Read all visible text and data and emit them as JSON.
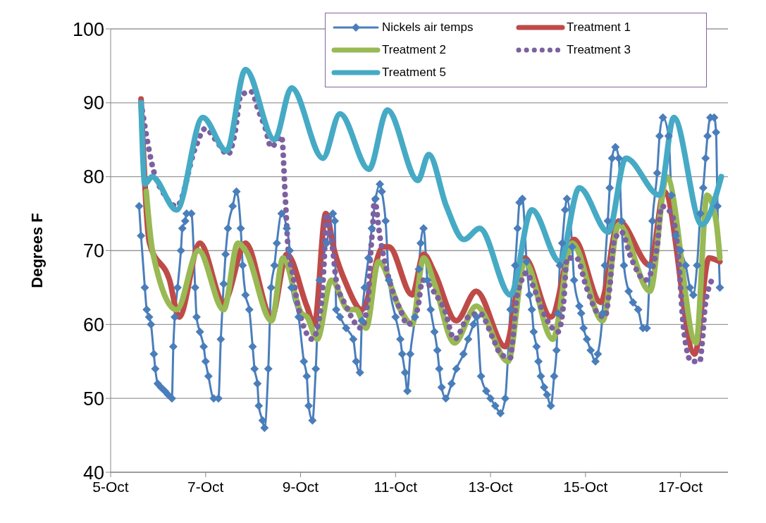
{
  "chart_data": {
    "type": "line",
    "ylabel": "Degrees F",
    "xlim": [
      "--10-05",
      "--10-18"
    ],
    "xticks": [
      {
        "value": "--10-05",
        "label": "5-Oct"
      },
      {
        "value": "--10-07",
        "label": "7-Oct"
      },
      {
        "value": "--10-09",
        "label": "9-Oct"
      },
      {
        "value": "--10-11",
        "label": "11-Oct"
      },
      {
        "value": "--10-13",
        "label": "13-Oct"
      },
      {
        "value": "--10-15",
        "label": "15-Oct"
      },
      {
        "value": "--10-17",
        "label": "17-Oct"
      }
    ],
    "ylim": [
      40,
      100
    ],
    "yticks": [
      40,
      50,
      60,
      70,
      80,
      90,
      100
    ],
    "grid": "y",
    "legend": "top right",
    "series": [
      {
        "name": "Nickels air temps",
        "color": "#4a7ebb",
        "marker": "diamond",
        "x": [
          "--10-05T14:24",
          "--10-05T15:22",
          "--10-05T17:17",
          "--10-05T18:14",
          "--10-05T19:26",
          "--10-05T20:24",
          "--10-05T21:50",
          "--10-05T22:34",
          "--10-05T23:46",
          "--10-06T01:26",
          "--10-06T03:22",
          "--10-06T05:02",
          "--10-06T06:58",
          "--10-06T07:41",
          "--10-06T08:24",
          "--10-06T09:50",
          "--10-06T11:31",
          "--10-06T12:14",
          "--10-06T13:41",
          "--10-06T14:24",
          "--10-06T16:48",
          "--10-06T18:43",
          "--10-06T19:26",
          "--10-06T21:07",
          "--10-06T23:02",
          "--10-07T00:00",
          "--10-07T01:26",
          "--10-07T04:05",
          "--10-07T06:29",
          "--10-07T07:41",
          "--10-07T09:07",
          "--10-07T10:05",
          "--10-07T11:17",
          "--10-07T13:41",
          "--10-07T15:36",
          "--10-07T17:46",
          "--10-07T18:43",
          "--10-07T20:10",
          "--10-07T22:05",
          "--10-07T23:46",
          "--10-08T00:43",
          "--10-08T02:10",
          "--10-08T02:53",
          "--10-08T04:48",
          "--10-08T05:46",
          "--10-08T07:41",
          "--10-08T09:07",
          "--10-08T10:48",
          "--10-08T12:00",
          "--10-08T14:24",
          "--10-08T17:02",
          "--10-08T18:29",
          "--10-08T19:26",
          "--10-08T23:02",
          "--10-09T01:41",
          "--10-09T03:07",
          "--10-09T04:05",
          "--10-09T06:00",
          "--10-09T07:41",
          "--10-09T09:36",
          "--10-09T13:12",
          "--10-09T16:19",
          "--10-09T17:17",
          "--10-09T18:00",
          "--10-09T19:55",
          "--10-09T23:02",
          "--10-10T02:38",
          "--10-10T04:05",
          "--10-10T06:00",
          "--10-10T06:58",
          "--10-10T08:24",
          "--10-10T10:19",
          "--10-10T12:00",
          "--10-10T13:55",
          "--10-10T16:05",
          "--10-10T17:02",
          "--10-10T18:58",
          "--10-10T20:38",
          "--10-11T00:00",
          "--10-11T02:24",
          "--10-11T03:22",
          "--10-11T04:48",
          "--10-11T06:00",
          "--10-11T07:26",
          "--10-11T09:50",
          "--10-11T11:46",
          "--10-11T12:43",
          "--10-11T14:10",
          "--10-11T16:05",
          "--10-11T17:46",
          "--10-11T19:41",
          "--10-11T21:07",
          "--10-11T22:05",
          "--10-11T23:17",
          "--10-12T01:26",
          "--10-12T04:19",
          "--10-12T06:43",
          "--10-12T10:19",
          "--10-12T12:43",
          "--10-12T15:22",
          "--10-12T17:02",
          "--10-12T19:12",
          "--10-12T21:50",
          "--10-13T00:00",
          "--10-13T02:24",
          "--10-13T05:02",
          "--10-13T07:26",
          "--10-13T10:05",
          "--10-13T12:29",
          "--10-13T13:41",
          "--10-13T14:38",
          "--10-13T16:05",
          "--10-13T18:14",
          "--10-13T19:41",
          "--10-13T20:53",
          "--10-13T21:50",
          "--10-13T23:17",
          "--10-14T00:14",
          "--10-14T01:26",
          "--10-14T03:07",
          "--10-14T04:34",
          "--10-14T06:29",
          "--10-14T08:10",
          "--10-14T09:22",
          "--10-14T10:05",
          "--10-14T11:02",
          "--10-14T12:14",
          "--10-14T13:41",
          "--10-14T14:38",
          "--10-14T17:17",
          "--10-14T18:14",
          "--10-14T20:53",
          "--10-14T21:50",
          "--10-14T23:02",
          "--10-15T00:43",
          "--10-15T02:38",
          "--10-15T05:02",
          "--10-15T06:14",
          "--10-15T08:38",
          "--10-15T09:50",
          "--10-15T11:17",
          "--10-15T12:14",
          "--10-15T13:26",
          "--10-15T15:07",
          "--10-15T16:48",
          "--10-15T18:14",
          "--10-15T19:26",
          "--10-15T21:50",
          "--10-16T00:00",
          "--10-16T02:38",
          "--10-16T05:02",
          "--10-16T06:58",
          "--10-16T08:38",
          "--10-16T09:50",
          "--10-16T12:14",
          "--10-16T13:26",
          "--10-16T15:07",
          "--10-16T18:00",
          "--10-16T19:26",
          "--10-16T21:36",
          "--10-17T00:00",
          "--10-17T02:38",
          "--10-17T04:48",
          "--10-17T06:29",
          "--10-17T08:24",
          "--10-17T10:05",
          "--10-17T11:31",
          "--10-17T12:43",
          "--10-17T13:41",
          "--10-17T15:07",
          "--10-17T17:02",
          "--10-17T18:00",
          "--10-17T18:43",
          "--10-17T19:55"
        ],
        "values": [
          76,
          72,
          65,
          62,
          61,
          60,
          56,
          54,
          52,
          51.5,
          51,
          50.5,
          50,
          57,
          61,
          65,
          70,
          73,
          74,
          75,
          75,
          65,
          61,
          59,
          57,
          55,
          53,
          50,
          50,
          58,
          65.5,
          69.5,
          73,
          76,
          78,
          73,
          68,
          64,
          62,
          57,
          54,
          52,
          49,
          47,
          46,
          54,
          65,
          68,
          71,
          75,
          73,
          70,
          65,
          61,
          55,
          53,
          49,
          47,
          54,
          66,
          71,
          75,
          74,
          62,
          61,
          59.5,
          58,
          55,
          53.5,
          60.5,
          65,
          69,
          73,
          77,
          79,
          78,
          74,
          66,
          61,
          58,
          56,
          53.5,
          51,
          56,
          61,
          67.5,
          71,
          73,
          66,
          62,
          59,
          56.5,
          54,
          51.5,
          50,
          52,
          54,
          56,
          58,
          60,
          61,
          53,
          51,
          50,
          49,
          48,
          50,
          62,
          68,
          73,
          76.5,
          77,
          68.5,
          64,
          62,
          59,
          57,
          55,
          53,
          51.5,
          50.5,
          49,
          53,
          56.5,
          61.5,
          68,
          71,
          75.5,
          77,
          70.5,
          66,
          62.5,
          61.5,
          59.5,
          58,
          56.5,
          55,
          56,
          61.5,
          68,
          74,
          78.5,
          82.5,
          84,
          82.5,
          74,
          68,
          64.5,
          63,
          62,
          59.5,
          59.5,
          68,
          74,
          80.5,
          85.5,
          88,
          85.5,
          77.5,
          72,
          70,
          68,
          65,
          64,
          68,
          75,
          78.5,
          82.5,
          85.5,
          88,
          88,
          86,
          76,
          65
        ]
      },
      {
        "name": "Treatment 1",
        "color": "#be4b48",
        "marker": "none",
        "x": [
          "--10-05T15:22",
          "--10-05T19:41",
          "--10-06T05:46",
          "--10-06T10:34",
          "--10-06T21:07",
          "--10-07T09:07",
          "--10-07T20:10",
          "--10-08T09:22",
          "--10-08T17:02",
          "--10-09T03:07",
          "--10-09T06:58",
          "--10-09T12:43",
          "--10-09T17:02",
          "--10-09T23:02",
          "--10-10T06:58",
          "--10-10T17:46",
          "--10-10T20:38",
          "--10-11T08:24",
          "--10-11T14:10",
          "--10-11T19:41",
          "--10-12T06:43",
          "--10-12T16:48",
          "--10-13T07:26",
          "--10-13T17:17",
          "--10-14T06:29",
          "--10-14T18:14",
          "--10-15T07:41",
          "--10-15T16:48",
          "--10-16T08:38",
          "--10-16T15:50",
          "--10-17T07:12",
          "--10-17T14:24",
          "--10-17T19:55"
        ],
        "values": [
          90.5,
          71,
          66,
          61,
          71,
          63,
          71,
          61,
          69.5,
          62.5,
          60,
          75,
          70,
          65.5,
          62,
          70.5,
          70.5,
          64,
          69.5,
          67,
          60.5,
          64.5,
          57,
          69,
          61,
          71.5,
          63,
          74,
          68,
          78,
          56,
          69,
          68.5
        ]
      },
      {
        "name": "Treatment 2",
        "color": "#98b954",
        "marker": "none",
        "x": [
          "--10-05T18:00",
          "--10-05T21:07",
          "--10-06T09:22",
          "--10-06T20:24",
          "--10-07T09:07",
          "--10-07T16:19",
          "--10-07T20:10",
          "--10-08T09:22",
          "--10-08T15:07",
          "--10-09T00:29",
          "--10-09T03:22",
          "--10-09T08:24",
          "--10-09T15:36",
          "--10-10T00:14",
          "--10-10T04:05",
          "--10-10T09:07",
          "--10-10T15:22",
          "--10-11T02:24",
          "--10-11T08:24",
          "--10-11T14:10",
          "--10-11T19:41",
          "--10-12T05:46",
          "--10-12T16:48",
          "--10-13T08:53",
          "--10-13T17:17",
          "--10-14T07:26",
          "--10-14T17:17",
          "--10-15T08:38",
          "--10-15T16:48",
          "--10-16T08:38",
          "--10-16T17:02",
          "--10-17T07:55",
          "--10-17T13:26",
          "--10-17T18:00",
          "--10-17T19:55"
        ],
        "values": [
          78,
          70,
          62,
          70,
          62,
          71,
          70,
          60.5,
          69,
          61.5,
          61,
          58,
          66,
          62,
          62,
          59.5,
          68.5,
          62,
          60,
          69,
          65.5,
          57.5,
          62.5,
          55,
          68.5,
          58,
          71,
          60.5,
          73.5,
          64.5,
          80,
          57.5,
          77.5,
          74,
          69
        ]
      },
      {
        "name": "Treatment 3",
        "color": "#7d60a0",
        "marker": "none",
        "line_style": "dotted",
        "x": [
          "--10-05T15:22",
          "--10-05T22:34",
          "--10-06T02:10",
          "--10-06T09:22",
          "--10-06T18:58",
          "--10-06T23:46",
          "--10-07T05:02",
          "--10-07T11:17",
          "--10-07T14:53",
          "--10-07T17:46",
          "--10-07T23:02",
          "--10-08T02:38",
          "--10-08T06:14",
          "--10-08T09:07",
          "--10-08T14:24",
          "--10-08T16:19",
          "--10-08T17:46",
          "--10-08T19:55",
          "--10-08T22:19",
          "--10-09T01:12",
          "--10-09T06:00",
          "--10-09T10:34",
          "--10-09T12:00",
          "--10-09T12:58",
          "--10-09T16:19",
          "--10-09T18:00",
          "--10-09T23:02",
          "--10-10T06:43",
          "--10-10T10:19",
          "--10-10T11:17",
          "--10-10T12:43",
          "--10-10T13:12",
          "--10-10T16:19",
          "--10-10T17:46",
          "--10-10T21:22",
          "--10-11T02:24",
          "--10-11T06:00",
          "--10-11T11:02",
          "--10-11T13:41",
          "--10-11T20:24",
          "--10-12T00:43",
          "--10-12T05:46",
          "--10-12T12:43",
          "--10-12T18:29",
          "--10-13T01:26",
          "--10-13T05:02",
          "--10-13T10:05",
          "--10-13T11:02",
          "--10-13T13:12",
          "--10-13T15:07",
          "--10-13T18:14",
          "--10-13T21:50",
          "--10-14T02:53",
          "--10-14T10:05",
          "--10-14T12:58",
          "--10-14T14:38",
          "--10-14T19:26",
          "--10-15T00:29",
          "--10-15T06:14",
          "--10-15T09:50",
          "--10-15T12:14",
          "--10-15T14:38",
          "--10-15T18:14",
          "--10-15T23:02",
          "--10-16T06:14",
          "--10-16T12:14",
          "--10-16T14:24",
          "--10-16T19:26",
          "--10-16T23:02",
          "--10-17T01:12",
          "--10-17T02:53",
          "--10-17T05:31",
          "--10-17T09:50",
          "--10-17T10:48",
          "--10-17T12:43",
          "--10-17T17:02"
        ],
        "values": [
          90,
          80,
          78,
          76,
          84,
          86.5,
          85,
          83,
          86,
          91,
          91.5,
          89,
          86.5,
          84,
          85.5,
          77,
          70,
          67,
          63,
          60,
          58,
          63,
          69,
          75,
          70,
          66,
          62.5,
          59.5,
          64,
          69,
          74.5,
          77,
          71.5,
          69.5,
          65.5,
          62,
          60,
          62,
          66,
          64,
          62,
          58,
          61,
          61.5,
          58,
          56,
          55.5,
          57.5,
          63.5,
          65.5,
          67,
          65,
          61.5,
          59,
          63,
          69,
          69,
          65,
          61.5,
          61,
          65,
          71.5,
          72.5,
          69,
          66,
          70.5,
          76,
          75,
          69,
          60.5,
          57,
          55,
          55,
          57,
          63,
          66.5
        ]
      },
      {
        "name": "Treatment 5",
        "color": "#46aac5",
        "marker": "none",
        "x": [
          "--10-05T15:22",
          "--10-05T17:17",
          "--10-05T20:53",
          "--10-06T09:22",
          "--10-06T22:34",
          "--10-07T10:34",
          "--10-07T20:10",
          "--10-08T10:48",
          "--10-08T19:26",
          "--10-09T11:17",
          "--10-09T19:55",
          "--10-10T10:34",
          "--10-10T19:55",
          "--10-11T11:17",
          "--10-11T16:48",
          "--10-12T01:41",
          "--10-12T10:34",
          "--10-12T18:29",
          "--10-13T10:05",
          "--10-13T20:53",
          "--10-14T11:02",
          "--10-14T20:53",
          "--10-15T11:31",
          "--10-15T20:24",
          "--10-16T13:26",
          "--10-16T20:38",
          "--10-17T10:48",
          "--10-17T20:38"
        ],
        "values": [
          90,
          79,
          80,
          75.5,
          88,
          83.5,
          94.5,
          85,
          92,
          82.5,
          88.5,
          81,
          89,
          79.5,
          83,
          76,
          71.5,
          73,
          64,
          75.5,
          68.5,
          78.5,
          72.5,
          82.5,
          77.5,
          88,
          73.5,
          80
        ]
      }
    ]
  }
}
